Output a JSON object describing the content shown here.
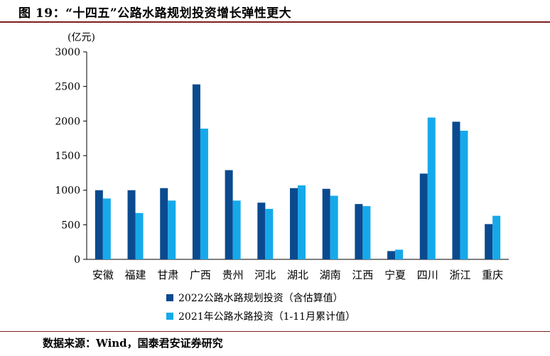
{
  "figure": {
    "title": "图 19：“十四五”公路水路规划投资增长弹性更大",
    "source": "数据来源：Wind，国泰君安证券研究"
  },
  "colors": {
    "series_2022": "#0b4a8f",
    "series_2021": "#16a9ea",
    "axis": "#000000",
    "title_rule": "#7f1d1d"
  },
  "chart_data": {
    "type": "bar",
    "unit_label": "(亿元)",
    "categories": [
      "安徽",
      "福建",
      "甘肃",
      "广西",
      "贵州",
      "河北",
      "湖北",
      "湖南",
      "江西",
      "宁夏",
      "四川",
      "浙江",
      "重庆"
    ],
    "series": [
      {
        "name": "2022公路水路规划投资（含估算值）",
        "values": [
          1000,
          1000,
          1030,
          2530,
          1290,
          820,
          1030,
          1020,
          800,
          120,
          1240,
          1990,
          510
        ]
      },
      {
        "name": "2021年公路水路投资（1-11月累计值）",
        "values": [
          880,
          670,
          850,
          1890,
          850,
          730,
          1070,
          920,
          770,
          140,
          2050,
          1860,
          630
        ]
      }
    ],
    "ylim": [
      0,
      3000
    ],
    "yticks": [
      0,
      500,
      1000,
      1500,
      2000,
      2500,
      3000
    ],
    "grid": false,
    "legend_position": "bottom"
  }
}
